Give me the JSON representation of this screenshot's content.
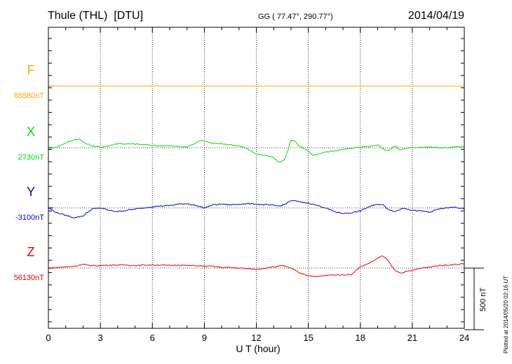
{
  "header": {
    "station": "Thule (THL)  [DTU]",
    "coords": "GG ( 77.47°, 290.77°)",
    "date": "2014/04/19"
  },
  "footer": {
    "plotted": "Plotted at 2014/05/20 02:16 UT"
  },
  "scale_bar": {
    "label": "500 nT",
    "value_nT": 500
  },
  "chart_data": {
    "type": "line",
    "xlabel": "U T (hour)",
    "xlim": [
      0,
      24
    ],
    "x_ticks": [
      "0",
      "3",
      "6",
      "9",
      "12",
      "15",
      "18",
      "21",
      "24"
    ],
    "grid": true,
    "series": [
      {
        "name": "F",
        "baseline_label": "88880nT",
        "baseline_nT": 88880,
        "color": "#ffaa00",
        "x": [
          0,
          24
        ],
        "delta_nT": [
          0,
          0
        ]
      },
      {
        "name": "X",
        "baseline_label": "2730nT",
        "baseline_nT": 2730,
        "color": "#00dd00",
        "x": [
          0,
          0.5,
          1.0,
          1.5,
          1.8,
          2.0,
          2.5,
          3.0,
          3.5,
          4.0,
          4.5,
          5.0,
          5.5,
          6.0,
          6.5,
          7.0,
          7.5,
          8.0,
          8.5,
          8.8,
          9.0,
          9.5,
          10.0,
          10.5,
          11.0,
          11.5,
          12.0,
          12.3,
          12.6,
          13.0,
          13.3,
          13.6,
          13.8,
          14.0,
          14.2,
          14.5,
          15.0,
          15.3,
          15.6,
          16.0,
          16.5,
          17.0,
          17.5,
          18.0,
          18.5,
          19.0,
          19.3,
          19.6,
          20.0,
          20.3,
          20.6,
          21.0,
          21.5,
          22.0,
          22.5,
          23.0,
          23.5,
          24.0
        ],
        "delta_nT": [
          0,
          5,
          40,
          65,
          70,
          45,
          15,
          5,
          15,
          35,
          30,
          30,
          25,
          20,
          15,
          15,
          10,
          5,
          40,
          60,
          55,
          35,
          30,
          25,
          15,
          -10,
          -50,
          -60,
          -65,
          -80,
          -120,
          -100,
          -30,
          60,
          55,
          10,
          -30,
          -60,
          -50,
          -35,
          -25,
          -15,
          -5,
          5,
          10,
          25,
          -10,
          -25,
          15,
          -20,
          -5,
          0,
          5,
          5,
          0,
          0,
          5,
          10
        ]
      },
      {
        "name": "Y",
        "baseline_label": "-3100nT",
        "baseline_nT": -3100,
        "color": "#0000dd",
        "x": [
          0,
          0.5,
          1.0,
          1.5,
          2.0,
          2.5,
          3.0,
          3.5,
          4.0,
          4.5,
          5.0,
          5.5,
          6.0,
          6.5,
          7.0,
          7.5,
          8.0,
          8.5,
          9.0,
          9.5,
          10.0,
          10.5,
          11.0,
          11.5,
          12.0,
          12.5,
          13.0,
          13.3,
          13.6,
          14.0,
          14.3,
          14.6,
          15.0,
          15.5,
          16.0,
          16.5,
          17.0,
          17.5,
          18.0,
          18.5,
          19.0,
          19.3,
          19.6,
          20.0,
          20.5,
          21.0,
          21.5,
          22.0,
          22.5,
          23.0,
          23.5,
          24.0
        ],
        "delta_nT": [
          0,
          -40,
          -60,
          -80,
          -65,
          -10,
          0,
          -20,
          -30,
          -20,
          -10,
          0,
          10,
          15,
          20,
          30,
          35,
          20,
          0,
          25,
          30,
          25,
          30,
          35,
          30,
          25,
          20,
          15,
          25,
          60,
          55,
          45,
          40,
          20,
          0,
          -30,
          -45,
          -40,
          -25,
          10,
          30,
          25,
          -10,
          -30,
          0,
          -20,
          -25,
          -35,
          -10,
          0,
          5,
          -10
        ]
      },
      {
        "name": "Z",
        "baseline_label": "56130nT",
        "baseline_nT": 56130,
        "color": "#ee0000",
        "x": [
          0,
          0.5,
          1.0,
          1.5,
          2.0,
          2.5,
          3.0,
          3.5,
          4.0,
          4.5,
          5.0,
          5.5,
          6.0,
          6.5,
          7.0,
          7.5,
          8.0,
          8.5,
          9.0,
          9.5,
          10.0,
          10.5,
          11.0,
          11.5,
          12.0,
          12.5,
          13.0,
          13.5,
          14.0,
          14.5,
          15.0,
          15.5,
          16.0,
          16.5,
          17.0,
          17.5,
          18.0,
          18.5,
          19.0,
          19.3,
          19.6,
          20.0,
          20.3,
          20.6,
          21.0,
          21.5,
          22.0,
          22.5,
          23.0,
          23.5,
          24.0
        ],
        "delta_nT": [
          0,
          5,
          10,
          15,
          30,
          20,
          20,
          25,
          25,
          25,
          20,
          25,
          25,
          25,
          20,
          25,
          20,
          20,
          15,
          15,
          5,
          5,
          0,
          -5,
          -10,
          0,
          10,
          20,
          0,
          -40,
          -60,
          -70,
          -60,
          -55,
          -55,
          -50,
          10,
          40,
          80,
          100,
          60,
          -20,
          -40,
          -30,
          -20,
          0,
          10,
          20,
          25,
          30,
          35
        ]
      }
    ]
  }
}
